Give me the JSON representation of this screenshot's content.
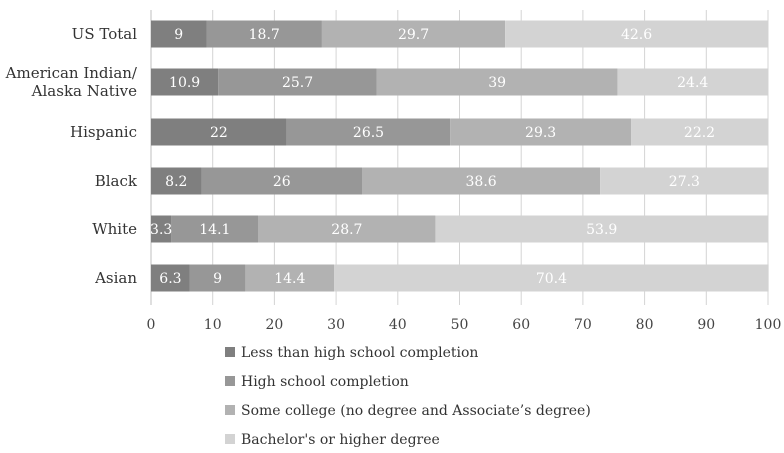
{
  "chart_data": {
    "type": "bar",
    "orientation": "horizontal",
    "stacked": true,
    "title": "",
    "xlabel": "",
    "ylabel": "",
    "xlim": [
      0,
      100
    ],
    "x_ticks": [
      "0",
      "10",
      "20",
      "30",
      "40",
      "50",
      "60",
      "70",
      "80",
      "90",
      "100"
    ],
    "grid": true,
    "legend_position": "bottom",
    "categories": [
      [
        "US Total"
      ],
      [
        "American Indian/",
        "Alaska Native"
      ],
      [
        "Hispanic"
      ],
      [
        "Black"
      ],
      [
        "White"
      ],
      [
        "Asian"
      ]
    ],
    "series": [
      {
        "name": "Less than high school completion",
        "color": "#7f7f7f",
        "values": [
          9,
          10.9,
          22,
          8.2,
          3.3,
          6.3
        ],
        "labels": [
          "9",
          "10.9",
          "22",
          "8.2",
          "3.3",
          "6.3"
        ]
      },
      {
        "name": "High school completion",
        "color": "#979797",
        "values": [
          18.7,
          25.7,
          26.5,
          26,
          14.1,
          9
        ],
        "labels": [
          "18.7",
          "25.7",
          "26.5",
          "26",
          "14.1",
          "9"
        ]
      },
      {
        "name": "Some college (no degree and Associate’s degree)",
        "color": "#b2b2b2",
        "values": [
          29.7,
          39,
          29.3,
          38.6,
          28.7,
          14.4
        ],
        "labels": [
          "29.7",
          "39",
          "29.3",
          "38.6",
          "28.7",
          "14.4"
        ]
      },
      {
        "name": "Bachelor's or higher degree",
        "color": "#d3d3d3",
        "values": [
          42.6,
          24.4,
          22.2,
          27.3,
          53.9,
          70.4
        ],
        "labels": [
          "42.6",
          "24.4",
          "22.2",
          "27.3",
          "53.9",
          "70.4"
        ]
      }
    ]
  }
}
